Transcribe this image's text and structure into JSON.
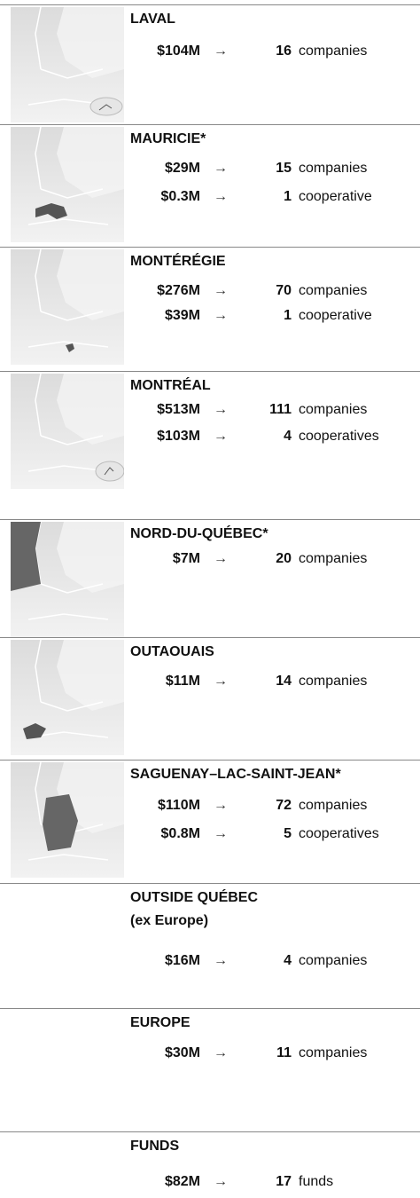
{
  "arrow": "→",
  "sections": [
    {
      "name": "LAVAL",
      "rows": [
        {
          "amount": "$104M",
          "count": 16,
          "unit": "companies"
        }
      ]
    },
    {
      "name": "MAURICIE*",
      "rows": [
        {
          "amount": "$29M",
          "count": 15,
          "unit": "companies"
        },
        {
          "amount": "$0.3M",
          "count": 1,
          "unit": "cooperative"
        }
      ]
    },
    {
      "name": "MONTÉRÉGIE",
      "rows": [
        {
          "amount": "$276M",
          "count": 70,
          "unit": "companies"
        },
        {
          "amount": "$39M",
          "count": 1,
          "unit": "cooperative"
        }
      ]
    },
    {
      "name": "MONTRÉAL",
      "rows": [
        {
          "amount": "$513M",
          "count": 111,
          "unit": "companies"
        },
        {
          "amount": "$103M",
          "count": 4,
          "unit": "cooperatives"
        }
      ]
    },
    {
      "name": "NORD-DU-QUÉBEC*",
      "rows": [
        {
          "amount": "$7M",
          "count": 20,
          "unit": "companies"
        }
      ]
    },
    {
      "name": "OUTAOUAIS",
      "rows": [
        {
          "amount": "$11M",
          "count": 14,
          "unit": "companies"
        }
      ]
    },
    {
      "name": "SAGUENAY–LAC-SAINT-JEAN*",
      "rows": [
        {
          "amount": "$110M",
          "count": 72,
          "unit": "companies"
        },
        {
          "amount": "$0.8M",
          "count": 5,
          "unit": "cooperatives"
        }
      ]
    },
    {
      "name": "OUTSIDE QUÉBEC",
      "subtitle": "(ex Europe)",
      "rows": [
        {
          "amount": "$16M",
          "count": 4,
          "unit": "companies"
        }
      ]
    },
    {
      "name": "EUROPE",
      "rows": [
        {
          "amount": "$30M",
          "count": 11,
          "unit": "companies"
        }
      ]
    },
    {
      "name": "FUNDS",
      "rows": [
        {
          "amount": "$82M",
          "count": 17,
          "unit": "funds"
        }
      ]
    }
  ]
}
